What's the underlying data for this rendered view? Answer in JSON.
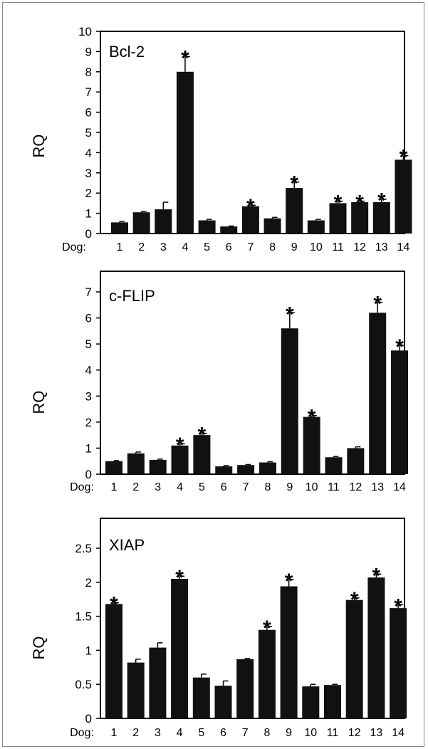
{
  "chart_data": [
    {
      "type": "bar",
      "title": "Bcl-2",
      "ylabel": "RQ",
      "xprefix": "Dog:",
      "ylim": [
        0,
        10
      ],
      "yticks": [
        "0",
        "1",
        "2",
        "3",
        "4",
        "5",
        "6",
        "7",
        "8",
        "9",
        "10"
      ],
      "categories": [
        "1",
        "2",
        "3",
        "4",
        "5",
        "6",
        "7",
        "8",
        "9",
        "10",
        "11",
        "12",
        "13",
        "14"
      ],
      "values": [
        0.55,
        1.05,
        1.2,
        8.0,
        0.65,
        0.35,
        1.35,
        0.75,
        2.25,
        0.65,
        1.5,
        1.55,
        1.55,
        3.65
      ],
      "errors": [
        0.05,
        0.05,
        0.35,
        0.75,
        0.05,
        0.02,
        0.05,
        0.05,
        0.3,
        0.05,
        0.1,
        0.05,
        0.15,
        0.2
      ],
      "significant": [
        false,
        false,
        false,
        true,
        false,
        false,
        true,
        false,
        true,
        false,
        true,
        true,
        true,
        true
      ],
      "marker": "*",
      "bar_color": "#111111"
    },
    {
      "type": "bar",
      "title": "c-FLIP",
      "ylabel": "RQ",
      "xprefix": "Dog:",
      "ylim": [
        0,
        7
      ],
      "yticks": [
        "0",
        "1",
        "2",
        "3",
        "4",
        "5",
        "6",
        "7"
      ],
      "categories": [
        "1",
        "2",
        "3",
        "4",
        "5",
        "6",
        "7",
        "8",
        "9",
        "10",
        "11",
        "12",
        "13",
        "14"
      ],
      "values": [
        0.5,
        0.8,
        0.55,
        1.1,
        1.5,
        0.3,
        0.35,
        0.45,
        5.6,
        2.2,
        0.65,
        1.0,
        6.2,
        4.75
      ],
      "errors": [
        0.02,
        0.05,
        0.03,
        0.07,
        0.07,
        0.03,
        0.02,
        0.03,
        0.6,
        0.05,
        0.03,
        0.05,
        0.4,
        0.2
      ],
      "significant": [
        false,
        false,
        false,
        true,
        true,
        false,
        false,
        false,
        true,
        true,
        false,
        false,
        true,
        true
      ],
      "marker": "*",
      "bar_color": "#111111"
    },
    {
      "type": "bar",
      "title": "XIAP",
      "ylabel": "RQ",
      "xprefix": "Dog:",
      "ylim": [
        0,
        2.5
      ],
      "yticks": [
        "0",
        "0.5",
        "1",
        "1.5",
        "2",
        "2.5"
      ],
      "categories": [
        "1",
        "2",
        "3",
        "4",
        "5",
        "6",
        "7",
        "8",
        "9",
        "10",
        "11",
        "12",
        "13",
        "14"
      ],
      "values": [
        1.68,
        0.82,
        1.04,
        2.05,
        0.6,
        0.48,
        0.87,
        1.3,
        1.94,
        0.47,
        0.49,
        1.74,
        2.07,
        1.62
      ],
      "errors": [
        0.02,
        0.05,
        0.07,
        0.04,
        0.05,
        0.07,
        0.01,
        0.05,
        0.1,
        0.03,
        0.01,
        0.03,
        0.05,
        0.05
      ],
      "significant": [
        true,
        false,
        false,
        true,
        false,
        false,
        false,
        true,
        true,
        false,
        false,
        true,
        true,
        true
      ],
      "marker": "*",
      "bar_color": "#111111"
    }
  ]
}
